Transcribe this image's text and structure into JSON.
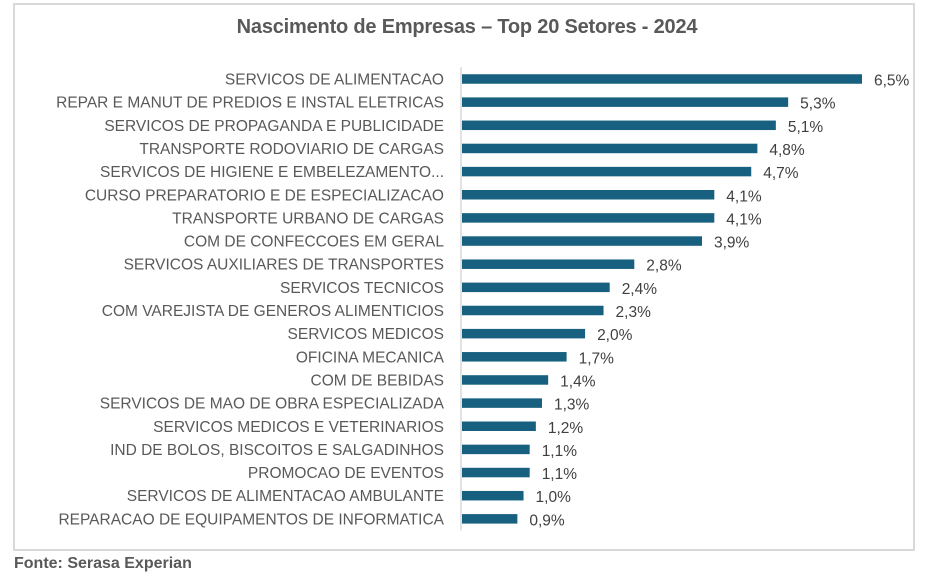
{
  "chart_data": {
    "type": "bar",
    "orientation": "horizontal",
    "title": "Nascimento de Empresas – Top 20 Setores - 2024",
    "xlabel": "",
    "ylabel": "",
    "value_format": "percent_comma_1dp",
    "grid": false,
    "legend": null,
    "bar_color": "#17607f",
    "xlim": [
      0,
      6.5
    ],
    "categories": [
      "SERVICOS DE ALIMENTACAO",
      "REPAR E MANUT DE PREDIOS E INSTAL ELETRICAS",
      "SERVICOS DE PROPAGANDA E PUBLICIDADE",
      "TRANSPORTE RODOVIARIO DE CARGAS",
      "SERVICOS DE HIGIENE E EMBELEZAMENTO...",
      "CURSO PREPARATORIO E DE ESPECIALIZACAO",
      "TRANSPORTE URBANO DE CARGAS",
      "COM DE CONFECCOES EM GERAL",
      "SERVICOS AUXILIARES DE TRANSPORTES",
      "SERVICOS TECNICOS",
      "COM VAREJISTA DE GENEROS ALIMENTICIOS",
      "SERVICOS MEDICOS",
      "OFICINA MECANICA",
      "COM DE BEBIDAS",
      "SERVICOS DE MAO DE OBRA ESPECIALIZADA",
      "SERVICOS MEDICOS E VETERINARIOS",
      "IND DE BOLOS, BISCOITOS E SALGADINHOS",
      "PROMOCAO DE EVENTOS",
      "SERVICOS DE ALIMENTACAO AMBULANTE",
      "REPARACAO DE EQUIPAMENTOS DE INFORMATICA"
    ],
    "values": [
      6.5,
      5.3,
      5.1,
      4.8,
      4.7,
      4.1,
      4.1,
      3.9,
      2.8,
      2.4,
      2.3,
      2.0,
      1.7,
      1.4,
      1.3,
      1.2,
      1.1,
      1.1,
      1.0,
      0.9
    ],
    "data_labels": [
      "6,5%",
      "5,3%",
      "5,1%",
      "4,8%",
      "4,7%",
      "4,1%",
      "4,1%",
      "3,9%",
      "2,8%",
      "2,4%",
      "2,3%",
      "2,0%",
      "1,7%",
      "1,4%",
      "1,3%",
      "1,2%",
      "1,1%",
      "1,1%",
      "1,0%",
      "0,9%"
    ]
  },
  "source": "Fonte: Serasa Experian"
}
